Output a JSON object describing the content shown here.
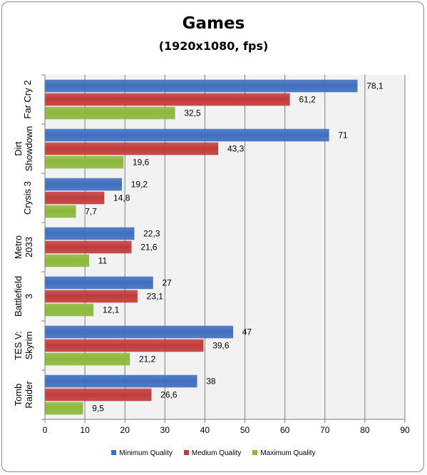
{
  "chart_data": {
    "type": "bar",
    "orientation": "horizontal",
    "title": "Games",
    "subtitle": "(1920x1080, fps)",
    "categories": [
      [
        "Far Cry 2"
      ],
      [
        "Dirt",
        "Showdown"
      ],
      [
        "Crysis 3"
      ],
      [
        "Metro",
        "2033"
      ],
      [
        "Battlefield",
        "3"
      ],
      [
        "TES V:",
        "Skyrim"
      ],
      [
        "Tomb",
        "Raider"
      ]
    ],
    "series": [
      {
        "name": "Minimum Quality",
        "color": "#3f6fbf",
        "values": [
          78.1,
          71,
          19.2,
          22.3,
          27,
          47,
          38
        ],
        "labels": [
          "78,1",
          "71",
          "19,2",
          "22,3",
          "27",
          "47",
          "38"
        ]
      },
      {
        "name": "Medium Quality",
        "color": "#c23b3b",
        "values": [
          61.2,
          43.3,
          14.8,
          21.6,
          23.1,
          39.6,
          26.6
        ],
        "labels": [
          "61,2",
          "43,3",
          "14,8",
          "21,6",
          "23,1",
          "39,6",
          "26,6"
        ]
      },
      {
        "name": "Maximum Quality",
        "color": "#8cb83c",
        "values": [
          32.5,
          19.6,
          7.7,
          11,
          12.1,
          21.2,
          9.5
        ],
        "labels": [
          "32,5",
          "19,6",
          "7,7",
          "11",
          "12,1",
          "21,2",
          "9,5"
        ]
      }
    ],
    "xlim": [
      0,
      90
    ],
    "xticks": [
      0,
      10,
      20,
      30,
      40,
      50,
      60,
      70,
      80,
      90
    ],
    "grid": true,
    "legend": "bottom"
  }
}
